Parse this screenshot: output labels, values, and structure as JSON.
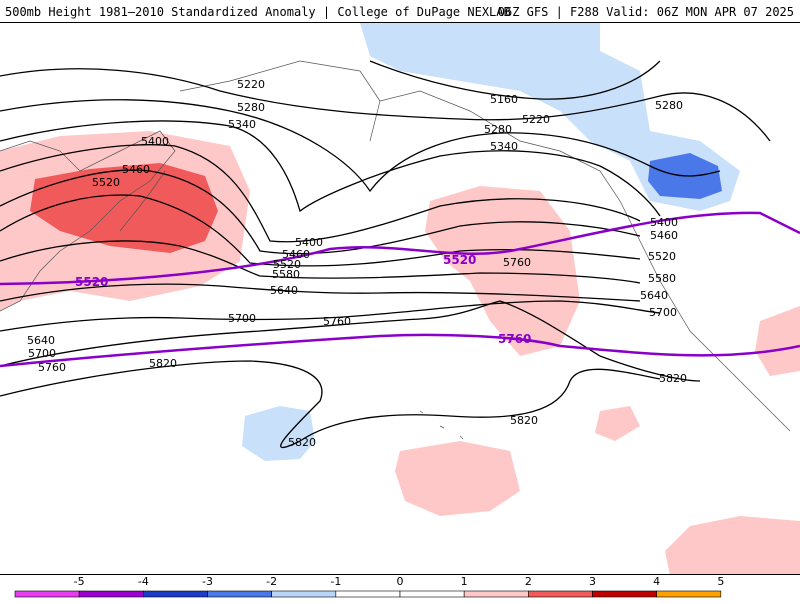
{
  "header": {
    "title_left": "500mb Height 1981–2010 Standardized Anomaly | College of DuPage NEXLAB",
    "title_right": "06Z GFS | F288 Valid: 06Z MON APR 07 2025"
  },
  "map": {
    "height_contour_labels": [
      "5160",
      "5220",
      "5220",
      "5280",
      "5280",
      "5280",
      "5340",
      "5340",
      "5400",
      "5400",
      "5400",
      "5460",
      "5460",
      "5460",
      "5520",
      "5520",
      "5520",
      "5580",
      "5580",
      "5640",
      "5640",
      "5640",
      "5700",
      "5700",
      "5700",
      "5760",
      "5760",
      "5760",
      "5820",
      "5820",
      "5820",
      "5820"
    ],
    "reference_contours": [
      {
        "label": "5520",
        "color": "#8a00c8"
      },
      {
        "label": "5760",
        "color": "#8a00c8"
      }
    ]
  },
  "legend": {
    "ticks": [
      "-5",
      "-4",
      "-3",
      "-2",
      "-1",
      "0",
      "1",
      "2",
      "3",
      "4",
      "5"
    ],
    "colors": [
      "#e83cf0",
      "#9b00d0",
      "#1a3cc8",
      "#4a78e8",
      "#b8d6fa",
      "#ffffff",
      "#ffffff",
      "#ffc8c8",
      "#f05a5a",
      "#c00000",
      "#ffa000"
    ]
  }
}
